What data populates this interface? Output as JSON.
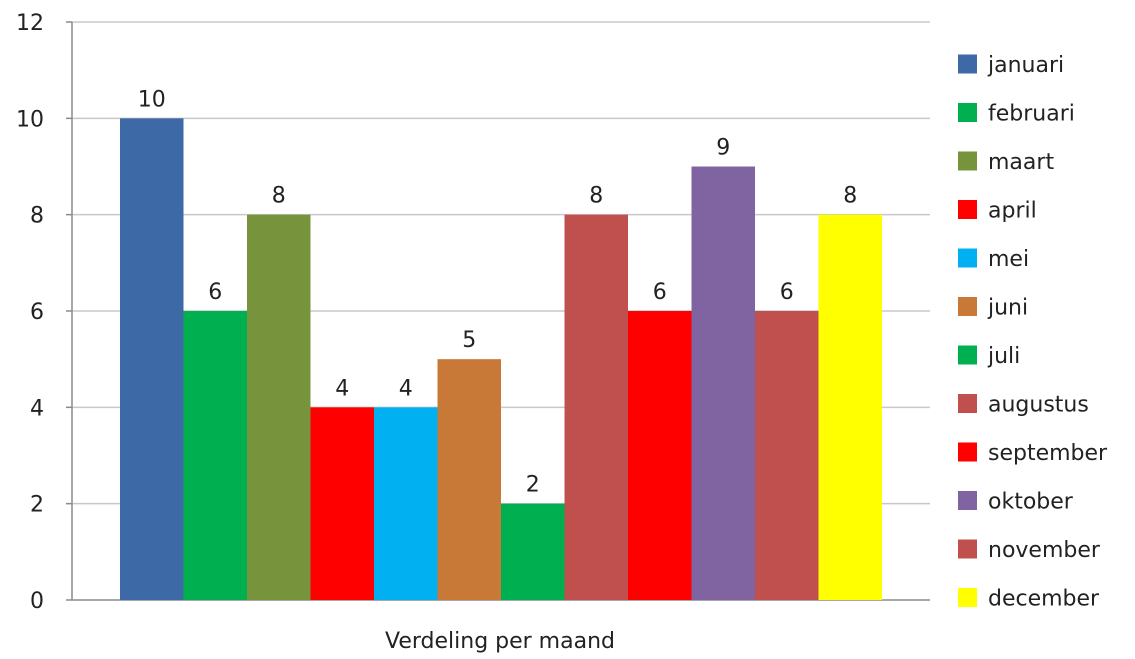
{
  "chart_data": {
    "type": "bar",
    "xlabel": "Verdeling per maand",
    "ylim": [
      0,
      12
    ],
    "yticks": [
      0,
      2,
      4,
      6,
      8,
      10,
      12
    ],
    "grid": true,
    "legend_position": "right",
    "series": [
      {
        "name": "januari",
        "value": 10,
        "color": "#3d6aa6"
      },
      {
        "name": "februari",
        "value": 6,
        "color": "#00b050"
      },
      {
        "name": "maart",
        "value": 8,
        "color": "#77933c"
      },
      {
        "name": "april",
        "value": 4,
        "color": "#ff0000"
      },
      {
        "name": "mei",
        "value": 4,
        "color": "#00b0f0"
      },
      {
        "name": "juni",
        "value": 5,
        "color": "#c87937"
      },
      {
        "name": "juli",
        "value": 2,
        "color": "#00b050"
      },
      {
        "name": "augustus",
        "value": 8,
        "color": "#c0504d"
      },
      {
        "name": "september",
        "value": 6,
        "color": "#ff0000"
      },
      {
        "name": "oktober",
        "value": 9,
        "color": "#8064a2"
      },
      {
        "name": "november",
        "value": 6,
        "color": "#c0504d"
      },
      {
        "name": "december",
        "value": 8,
        "color": "#ffff00"
      }
    ]
  }
}
